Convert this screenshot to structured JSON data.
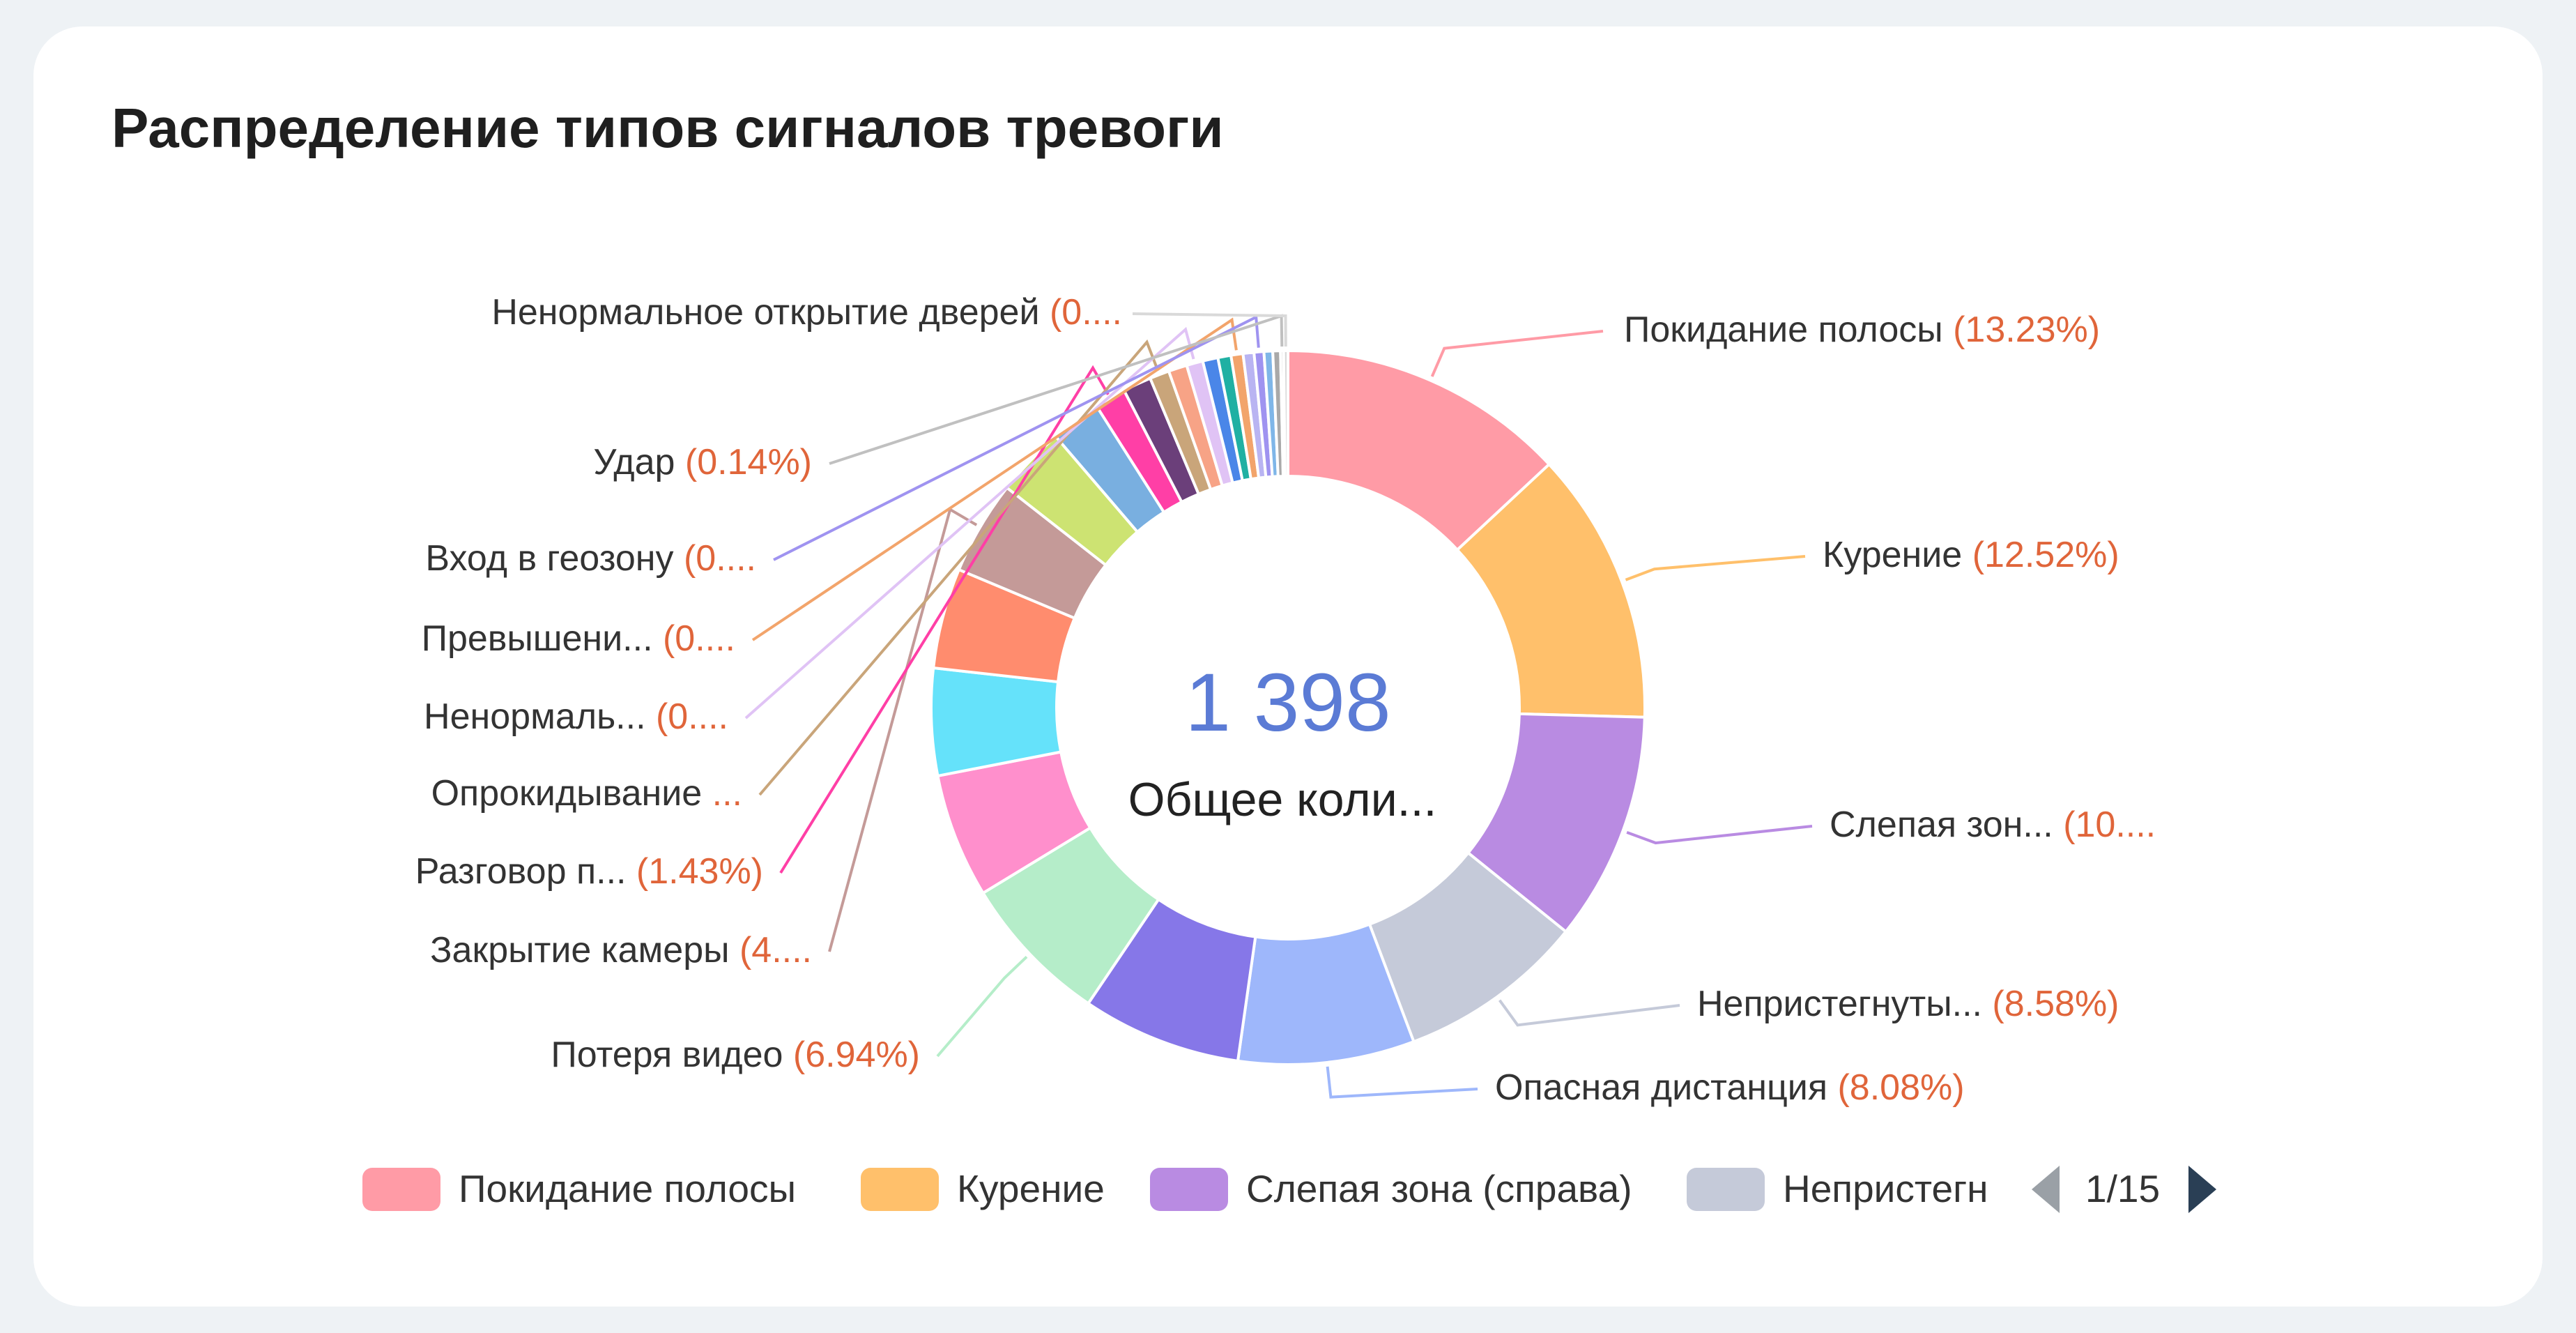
{
  "title": "Распределение типов сигналов тревоги",
  "center": {
    "value": "1 398",
    "label": "Общее коли..."
  },
  "pager": {
    "text": "1/15"
  },
  "chart_data": {
    "type": "pie",
    "title": "Распределение типов сигналов тревоги",
    "total": 1398,
    "slices": [
      {
        "name": "Покидание полосы",
        "value": 13.23,
        "label": "Покидание полосы",
        "pct": "(13.23%)",
        "color": "#ff9ba6"
      },
      {
        "name": "Курение",
        "value": 12.52,
        "label": "Курение",
        "pct": "(12.52%)",
        "color": "#ffc06b"
      },
      {
        "name": "Слепая зона (справа)",
        "value": 10.5,
        "label": "Слепая зон...",
        "pct": "(10....",
        "color": "#b98be2"
      },
      {
        "name": "Непристегнуты...",
        "value": 8.58,
        "label": "Непристегнуты...",
        "pct": "(8.58%)",
        "color": "#c5cad9"
      },
      {
        "name": "Опасная дистанция",
        "value": 8.08,
        "label": "Опасная дистанция",
        "pct": "(8.08%)",
        "color": "#9eb7fb"
      },
      {
        "name": "",
        "value": 7.3,
        "label": "",
        "pct": "",
        "color": "#8677e8"
      },
      {
        "name": "Потеря видео",
        "value": 6.94,
        "label": "Потеря видео",
        "pct": "(6.94%)",
        "color": "#b5edc9"
      },
      {
        "name": "",
        "value": 5.7,
        "label": "",
        "pct": "",
        "color": "#ff8fcc"
      },
      {
        "name": "",
        "value": 4.9,
        "label": "",
        "pct": "",
        "color": "#65e2fa"
      },
      {
        "name": "",
        "value": 4.6,
        "label": "",
        "pct": "",
        "color": "#ff8c6e"
      },
      {
        "name": "Закрытие камеры",
        "value": 4.3,
        "label": "Закрытие камеры",
        "pct": "(4....",
        "color": "#c49a98"
      },
      {
        "name": "",
        "value": 3.2,
        "label": "",
        "pct": "",
        "color": "#cde372"
      },
      {
        "name": "",
        "value": 2.3,
        "label": "",
        "pct": "",
        "color": "#79afe0"
      },
      {
        "name": "Разговор п...",
        "value": 1.43,
        "label": "Разговор п...",
        "pct": "(1.43%)",
        "color": "#ff3fa6"
      },
      {
        "name": "",
        "value": 1.3,
        "label": "",
        "pct": "",
        "color": "#6b3f7a"
      },
      {
        "name": "Опрокидывание",
        "value": 0.9,
        "label": "Опрокидывание",
        "pct": "...",
        "color": "#c9a57a"
      },
      {
        "name": "",
        "value": 0.85,
        "label": "",
        "pct": "",
        "color": "#f7a386"
      },
      {
        "name": "Ненормаль...",
        "value": 0.75,
        "label": "Ненормаль...",
        "pct": "(0....",
        "color": "#e0c3f5"
      },
      {
        "name": "",
        "value": 0.7,
        "label": "",
        "pct": "",
        "color": "#4a86e8"
      },
      {
        "name": "",
        "value": 0.6,
        "label": "",
        "pct": "",
        "color": "#1fb0a3"
      },
      {
        "name": "Превышени...",
        "value": 0.55,
        "label": "Превышени...",
        "pct": "(0....",
        "color": "#f2a46b"
      },
      {
        "name": "",
        "value": 0.5,
        "label": "",
        "pct": "",
        "color": "#b9b4f2"
      },
      {
        "name": "Вход в геозону",
        "value": 0.45,
        "label": "Вход в геозону",
        "pct": "(0....",
        "color": "#9f93f0"
      },
      {
        "name": "",
        "value": 0.4,
        "label": "",
        "pct": "",
        "color": "#7fb6e8"
      },
      {
        "name": "",
        "value": 0.35,
        "label": "",
        "pct": "",
        "color": "#a9a9a9"
      },
      {
        "name": "Удар",
        "value": 0.14,
        "label": "Удар",
        "pct": "(0.14%)",
        "color": "#c0c0c0"
      },
      {
        "name": "Ненормальное открытие дверей",
        "value": 0.2,
        "label": "Ненормальное открытие дверей",
        "pct": "(0....",
        "color": "#d9d9d9"
      }
    ],
    "legend": [
      {
        "label": "Покидание полосы",
        "color": "#ff9ba6"
      },
      {
        "label": "Курение",
        "color": "#ffc06b"
      },
      {
        "label": "Слепая зона (справа)",
        "color": "#b98be2"
      },
      {
        "label": "Непристегн",
        "color": "#c5cad9"
      }
    ],
    "legend_position": "bottom"
  }
}
